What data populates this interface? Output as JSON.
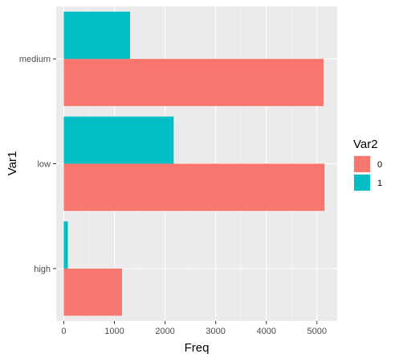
{
  "chart_data": {
    "type": "bar",
    "orientation": "horizontal",
    "categories": [
      "high",
      "low",
      "medium"
    ],
    "series": [
      {
        "name": "0",
        "color": "#F8766D",
        "values": [
          1150,
          5150,
          5130
        ]
      },
      {
        "name": "1",
        "color": "#00BFC4",
        "values": [
          80,
          2170,
          1310
        ]
      }
    ],
    "xlabel": "Freq",
    "ylabel": "Var1",
    "xticks": [
      0,
      1000,
      2000,
      3000,
      4000,
      5000
    ],
    "xlim": [
      -150,
      5400
    ],
    "legend": {
      "title": "Var2",
      "position": "right"
    },
    "grid": true
  }
}
